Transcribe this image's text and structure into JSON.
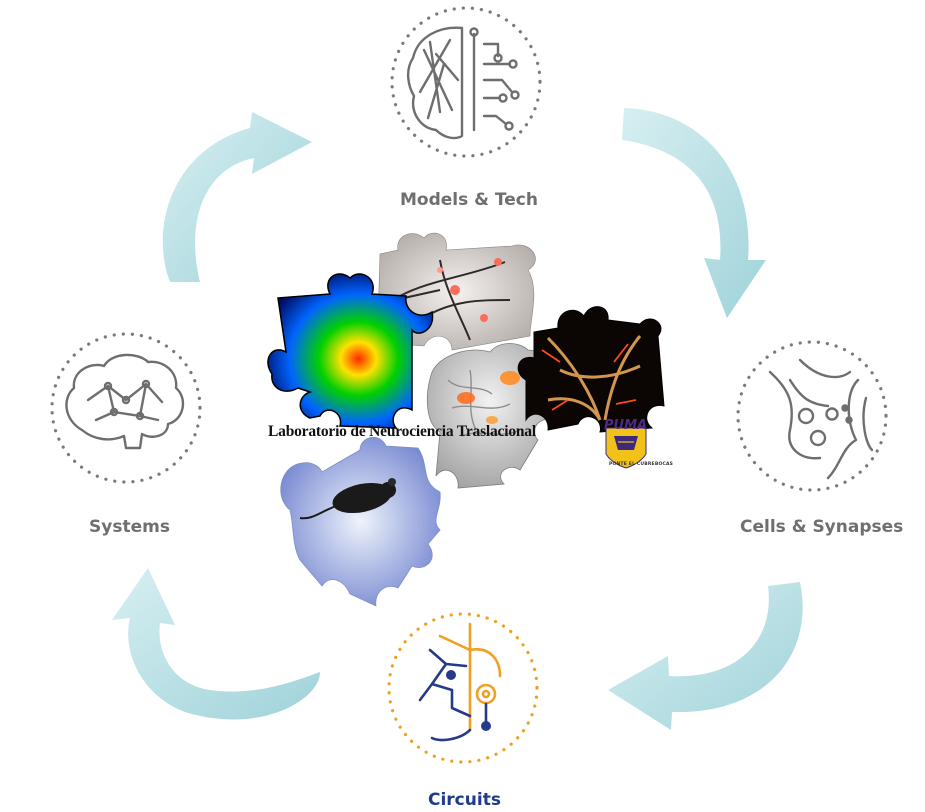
{
  "diagram": {
    "center_title": "Laboratorio de Neurociencia  Traslacional",
    "nodes": [
      {
        "id": "models",
        "label": "Models & Tech",
        "icon": "brain-circuit-icon"
      },
      {
        "id": "cells",
        "label": "Cells & Synapses",
        "icon": "synapse-icon"
      },
      {
        "id": "circuits",
        "label": "Circuits",
        "icon": "neuron-circuit-icon"
      },
      {
        "id": "systems",
        "label": "Systems",
        "icon": "brain-network-icon"
      }
    ],
    "logo": {
      "word": "PUMA",
      "tagline": "PONTE EL CUBREBOCAS"
    },
    "colors": {
      "arrow": "#a9dbe0",
      "circle_dots": "#7a7a7a",
      "circuits_label": "#1f3c88",
      "circuits_orange": "#f0a020",
      "circuits_navy": "#263a8a"
    }
  }
}
